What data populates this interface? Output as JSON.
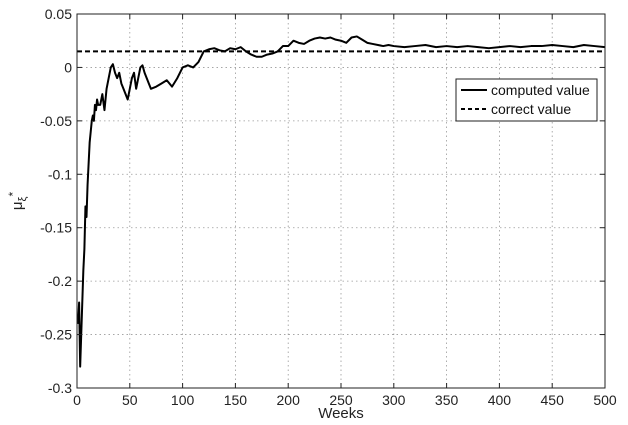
{
  "chart_data": {
    "type": "line",
    "title": "",
    "xlabel": "Weeks",
    "ylabel": "μ_ξ*",
    "ylabel_main": "μ",
    "ylabel_sub": "ξ",
    "ylabel_sup": "*",
    "xlim": [
      0,
      500
    ],
    "ylim": [
      -0.3,
      0.05
    ],
    "grid": true,
    "legend_position": "top-right",
    "x_ticks": [
      0,
      50,
      100,
      150,
      200,
      250,
      300,
      350,
      400,
      450,
      500
    ],
    "x_tick_labels": [
      "0",
      "50",
      "100",
      "150",
      "200",
      "250",
      "300",
      "350",
      "400",
      "450",
      "500"
    ],
    "y_ticks": [
      0.05,
      0,
      -0.05,
      -0.1,
      -0.15,
      -0.2,
      -0.25,
      -0.3
    ],
    "y_tick_labels": [
      "0.05",
      "0",
      "-0.05",
      "-0.1",
      "-0.15",
      "-0.2",
      "-0.25",
      "-0.3"
    ],
    "series": [
      {
        "name": "computed value",
        "line_style": "solid",
        "color": "#000000",
        "x": [
          1,
          2,
          3,
          4,
          5,
          6,
          7,
          8,
          9,
          10,
          11,
          12,
          13,
          14,
          15,
          16,
          17,
          18,
          19,
          20,
          22,
          24,
          26,
          28,
          30,
          32,
          34,
          36,
          38,
          40,
          42,
          44,
          46,
          48,
          50,
          52,
          54,
          56,
          58,
          60,
          62,
          64,
          66,
          68,
          70,
          75,
          80,
          85,
          90,
          95,
          100,
          105,
          110,
          115,
          120,
          125,
          130,
          135,
          140,
          145,
          150,
          155,
          160,
          165,
          170,
          175,
          180,
          185,
          190,
          195,
          200,
          205,
          210,
          215,
          220,
          225,
          230,
          235,
          240,
          245,
          250,
          255,
          260,
          265,
          270,
          275,
          280,
          285,
          290,
          295,
          300,
          310,
          320,
          330,
          340,
          350,
          360,
          370,
          380,
          390,
          400,
          410,
          420,
          430,
          440,
          450,
          460,
          470,
          480,
          490,
          500
        ],
        "y": [
          -0.24,
          -0.22,
          -0.28,
          -0.25,
          -0.22,
          -0.19,
          -0.17,
          -0.13,
          -0.14,
          -0.11,
          -0.09,
          -0.07,
          -0.06,
          -0.05,
          -0.045,
          -0.05,
          -0.035,
          -0.04,
          -0.03,
          -0.035,
          -0.035,
          -0.025,
          -0.04,
          -0.02,
          -0.01,
          0.0,
          0.003,
          -0.005,
          -0.01,
          -0.005,
          -0.015,
          -0.02,
          -0.025,
          -0.03,
          -0.02,
          -0.01,
          -0.005,
          -0.02,
          -0.01,
          0.0,
          0.002,
          -0.005,
          -0.01,
          -0.015,
          -0.02,
          -0.018,
          -0.015,
          -0.012,
          -0.018,
          -0.01,
          0.0,
          0.002,
          0.0,
          0.005,
          0.015,
          0.017,
          0.018,
          0.016,
          0.015,
          0.018,
          0.017,
          0.019,
          0.015,
          0.012,
          0.01,
          0.01,
          0.012,
          0.013,
          0.015,
          0.02,
          0.02,
          0.025,
          0.023,
          0.022,
          0.025,
          0.027,
          0.028,
          0.027,
          0.028,
          0.026,
          0.025,
          0.023,
          0.028,
          0.029,
          0.026,
          0.023,
          0.022,
          0.021,
          0.02,
          0.021,
          0.02,
          0.019,
          0.02,
          0.021,
          0.019,
          0.02,
          0.019,
          0.02,
          0.019,
          0.018,
          0.019,
          0.02,
          0.019,
          0.02,
          0.02,
          0.021,
          0.02,
          0.019,
          0.021,
          0.02,
          0.019
        ]
      },
      {
        "name": "correct value",
        "line_style": "dashed",
        "color": "#000000",
        "x": [
          0,
          500
        ],
        "y": [
          0.015,
          0.015
        ]
      }
    ]
  }
}
